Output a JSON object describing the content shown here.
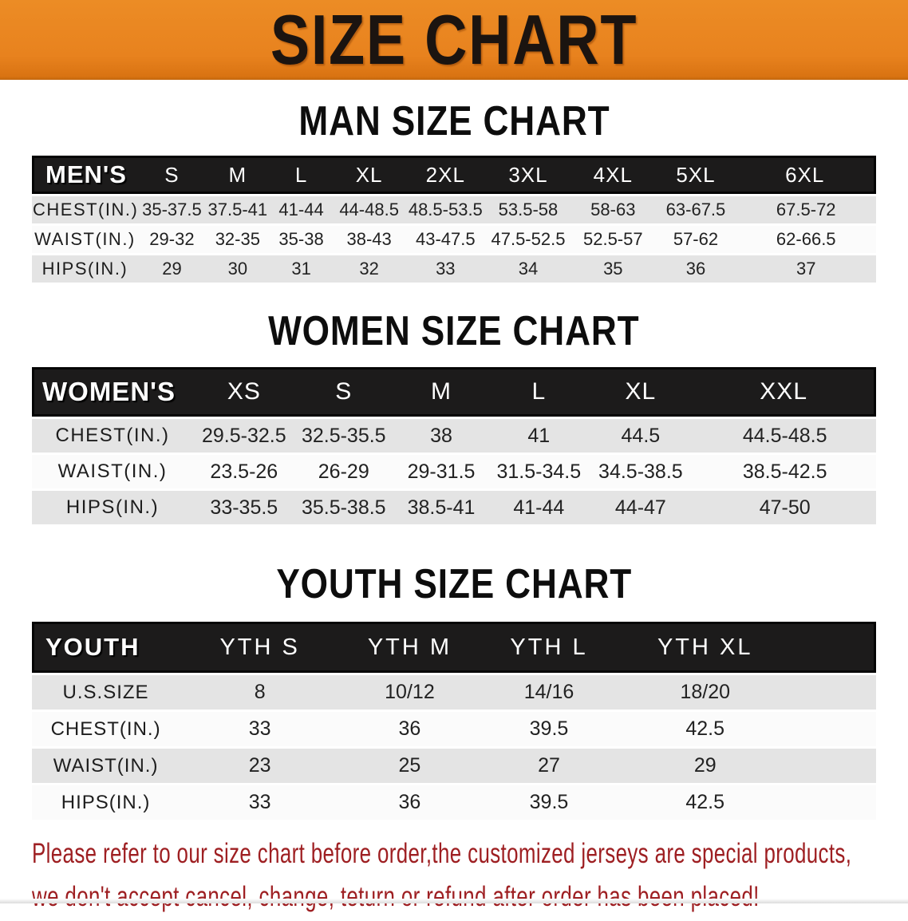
{
  "banner": {
    "title": "SIZE CHART",
    "bg_color": "#E8821E",
    "title_color": "#1B1410"
  },
  "sections": [
    {
      "heading": "MAN SIZE CHART",
      "label": "MEN'S",
      "columns": [
        "S",
        "M",
        "L",
        "XL",
        "2XL",
        "3XL",
        "4XL",
        "5XL",
        "6XL"
      ],
      "rows": [
        {
          "label": "CHEST(IN.)",
          "values": [
            "35-37.5",
            "37.5-41",
            "41-44",
            "44-48.5",
            "48.5-53.5",
            "53.5-58",
            "58-63",
            "63-67.5",
            "67.5-72"
          ]
        },
        {
          "label": "WAIST(IN.)",
          "values": [
            "29-32",
            "32-35",
            "35-38",
            "38-43",
            "43-47.5",
            "47.5-52.5",
            "52.5-57",
            "57-62",
            "62-66.5"
          ]
        },
        {
          "label": "HIPS(IN.)",
          "values": [
            "29",
            "30",
            "31",
            "32",
            "33",
            "34",
            "35",
            "36",
            "37"
          ]
        }
      ]
    },
    {
      "heading": "WOMEN SIZE CHART",
      "label": "WOMEN'S",
      "columns": [
        "XS",
        "S",
        "M",
        "L",
        "XL",
        "XXL"
      ],
      "rows": [
        {
          "label": "CHEST(IN.)",
          "values": [
            "29.5-32.5",
            "32.5-35.5",
            "38",
            "41",
            "44.5",
            "44.5-48.5"
          ]
        },
        {
          "label": "WAIST(IN.)",
          "values": [
            "23.5-26",
            "26-29",
            "29-31.5",
            "31.5-34.5",
            "34.5-38.5",
            "38.5-42.5"
          ]
        },
        {
          "label": "HIPS(IN.)",
          "values": [
            "33-35.5",
            "35.5-38.5",
            "38.5-41",
            "41-44",
            "44-47",
            "47-50"
          ]
        }
      ]
    },
    {
      "heading": "YOUTH SIZE CHART",
      "label": "YOUTH",
      "columns": [
        "YTH S",
        "YTH M",
        "YTH L",
        "YTH XL"
      ],
      "rows": [
        {
          "label": "U.S.SIZE",
          "values": [
            "8",
            "10/12",
            "14/16",
            "18/20"
          ]
        },
        {
          "label": "CHEST(IN.)",
          "values": [
            "33",
            "36",
            "39.5",
            "42.5"
          ]
        },
        {
          "label": "WAIST(IN.)",
          "values": [
            "23",
            "25",
            "27",
            "29"
          ]
        },
        {
          "label": "HIPS(IN.)",
          "values": [
            "33",
            "36",
            "39.5",
            "42.5"
          ]
        }
      ]
    }
  ],
  "footer": {
    "line1": "Please refer to our size chart before order,the customized jerseys are special products,",
    "line2": "we don't accept cancel, change, teturn or refund after order has been placed!",
    "text_color": "#9E1F22"
  },
  "colors": {
    "header_bar": "#1C1B1B",
    "row_shaded": "#E4E4E4",
    "row_plain": "#FBFBFB"
  }
}
